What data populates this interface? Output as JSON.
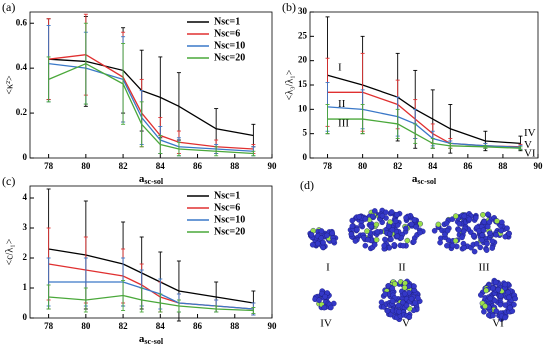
{
  "chart_data": [
    {
      "type": "line",
      "panel_label": "(a)",
      "x_label": "a",
      "x_label_sub": "sc-sol",
      "y_label": "<κ²>",
      "x": [
        78,
        80,
        82,
        83,
        84,
        85,
        87,
        89
      ],
      "xlim": [
        77,
        90
      ],
      "xticks": [
        78,
        80,
        82,
        84,
        86,
        88,
        90
      ],
      "ylim": [
        0,
        0.65
      ],
      "yticks": [
        0,
        0.2,
        0.4,
        0.6
      ],
      "legend": "upper right",
      "series": [
        {
          "name": "Nsc=1",
          "color": "#000000",
          "values": [
            0.44,
            0.43,
            0.39,
            0.3,
            0.27,
            0.23,
            0.13,
            0.1
          ],
          "errors": [
            0.18,
            0.2,
            0.19,
            0.18,
            0.18,
            0.15,
            0.09,
            0.05
          ]
        },
        {
          "name": "Nsc=6",
          "color": "#e03030",
          "values": [
            0.44,
            0.46,
            0.36,
            0.2,
            0.1,
            0.07,
            0.05,
            0.04
          ],
          "errors": [
            0.18,
            0.18,
            0.2,
            0.15,
            0.08,
            0.05,
            0.03,
            0.02
          ]
        },
        {
          "name": "Nsc=10",
          "color": "#3a78c8",
          "values": [
            0.42,
            0.4,
            0.35,
            0.18,
            0.08,
            0.05,
            0.04,
            0.03
          ],
          "errors": [
            0.17,
            0.16,
            0.19,
            0.12,
            0.06,
            0.04,
            0.02,
            0.02
          ]
        },
        {
          "name": "Nsc=20",
          "color": "#4aa83a",
          "values": [
            0.35,
            0.42,
            0.33,
            0.15,
            0.06,
            0.04,
            0.03,
            0.02
          ],
          "errors": [
            0.1,
            0.18,
            0.18,
            0.1,
            0.04,
            0.03,
            0.02,
            0.01
          ]
        }
      ]
    },
    {
      "type": "line",
      "panel_label": "(b)",
      "x_label": "a",
      "x_label_sub": "sc-sol",
      "y_label": "<λ₃/λ₁>",
      "x": [
        78,
        80,
        82,
        83,
        84,
        85,
        87,
        89
      ],
      "xlim": [
        77,
        90
      ],
      "xticks": [
        78,
        80,
        82,
        84,
        86,
        88,
        90
      ],
      "ylim": [
        0,
        30
      ],
      "yticks": [
        0,
        5,
        10,
        15,
        20,
        25,
        30
      ],
      "annotations": [
        "I",
        "II",
        "III",
        "IV",
        "V",
        "VI"
      ],
      "series": [
        {
          "name": "Nsc=1",
          "color": "#000000",
          "values": [
            17,
            15,
            12.5,
            10,
            8,
            6,
            3.5,
            3
          ],
          "errors": [
            12,
            10,
            9,
            8,
            6,
            5,
            2,
            1.5
          ]
        },
        {
          "name": "Nsc=6",
          "color": "#e03030",
          "values": [
            13.5,
            13.5,
            11,
            8,
            5,
            3,
            2.5,
            2.3
          ],
          "errors": [
            7,
            8,
            5,
            4,
            2,
            1,
            0.5,
            0.5
          ]
        },
        {
          "name": "Nsc=10",
          "color": "#3a78c8",
          "values": [
            10.5,
            10,
            8.5,
            7,
            4,
            3,
            2.5,
            2.2
          ],
          "errors": [
            5,
            4,
            4,
            3,
            1.5,
            0.5,
            0.5,
            0.4
          ]
        },
        {
          "name": "Nsc=20",
          "color": "#4aa83a",
          "values": [
            8,
            8,
            7,
            5,
            3,
            2.5,
            2.3,
            2
          ],
          "errors": [
            3,
            3,
            3,
            2,
            1,
            0.5,
            0.3,
            0.3
          ]
        }
      ]
    },
    {
      "type": "line",
      "panel_label": "(c)",
      "x_label": "a",
      "x_label_sub": "sc-sol",
      "y_label": "<c/λ₁>",
      "x": [
        78,
        80,
        82,
        83,
        84,
        85,
        87,
        89
      ],
      "xlim": [
        77,
        90
      ],
      "xticks": [
        78,
        80,
        82,
        84,
        86,
        88,
        90
      ],
      "ylim": [
        0,
        4.4
      ],
      "yticks": [
        0,
        1,
        2,
        3,
        4
      ],
      "legend": "upper right",
      "series": [
        {
          "name": "Nsc=1",
          "color": "#000000",
          "values": [
            2.3,
            2.1,
            1.8,
            1.5,
            1.2,
            0.9,
            0.7,
            0.5
          ],
          "errors": [
            2,
            1.8,
            1.4,
            1.2,
            1,
            1,
            0.5,
            0.4
          ]
        },
        {
          "name": "Nsc=6",
          "color": "#e03030",
          "values": [
            1.8,
            1.6,
            1.4,
            1.1,
            0.7,
            0.5,
            0.4,
            0.3
          ],
          "errors": [
            1.2,
            1.1,
            0.9,
            0.7,
            0.5,
            0.3,
            0.2,
            0.2
          ]
        },
        {
          "name": "Nsc=10",
          "color": "#3a78c8",
          "values": [
            1.2,
            1.2,
            1.2,
            1,
            0.8,
            0.5,
            0.4,
            0.3
          ],
          "errors": [
            0.8,
            0.8,
            0.8,
            0.6,
            0.5,
            0.3,
            0.2,
            0.2
          ]
        },
        {
          "name": "Nsc=20",
          "color": "#4aa83a",
          "values": [
            0.7,
            0.6,
            0.75,
            0.6,
            0.5,
            0.4,
            0.3,
            0.25
          ],
          "errors": [
            0.4,
            0.4,
            0.5,
            0.4,
            0.3,
            0.2,
            0.1,
            0.1
          ]
        }
      ]
    }
  ],
  "image_panel": {
    "panel_label": "(d)",
    "labels": [
      "I",
      "II",
      "III",
      "IV",
      "V",
      "VI"
    ]
  }
}
